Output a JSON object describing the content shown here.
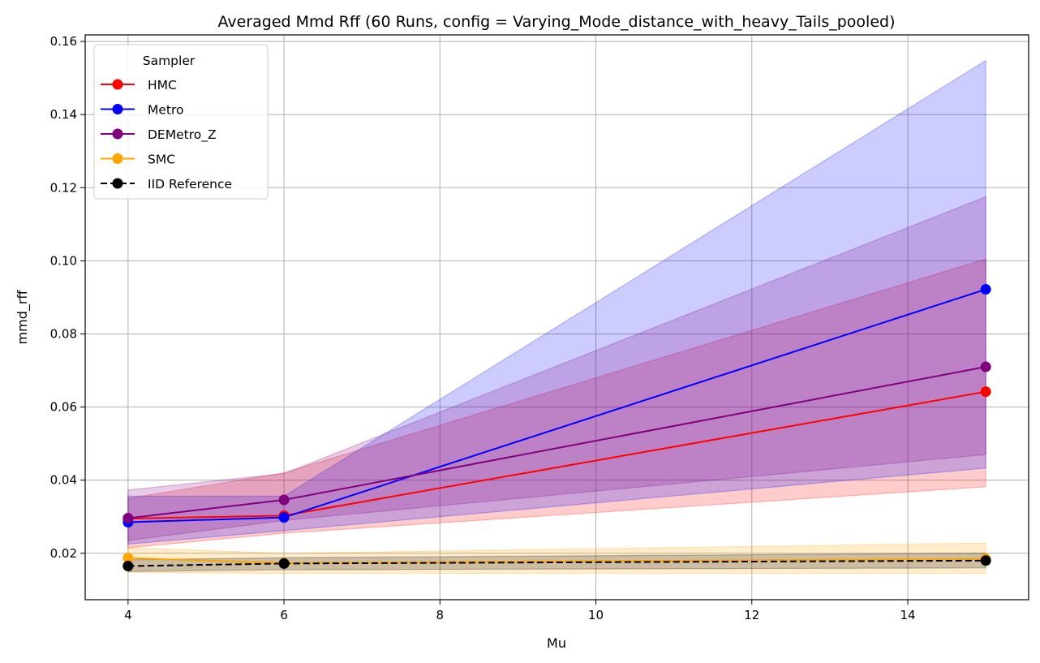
{
  "chart_data": {
    "type": "line",
    "title": "Averaged Mmd Rff (60 Runs, config = Varying_Mode_distance_with_heavy_Tails_pooled)",
    "xlabel": "Mu",
    "ylabel": "mmd_rff",
    "x": [
      4,
      6,
      15
    ],
    "xlim": [
      3.45,
      15.55
    ],
    "ylim": [
      0.0073,
      0.1618
    ],
    "xticks": [
      4,
      6,
      8,
      10,
      12,
      14
    ],
    "yticks": [
      0.02,
      0.04,
      0.06,
      0.08,
      0.1,
      0.12,
      0.14,
      0.16
    ],
    "ytick_labels": [
      "0.02",
      "0.04",
      "0.06",
      "0.08",
      "0.10",
      "0.12",
      "0.14",
      "0.16"
    ],
    "grid": true,
    "legend": {
      "title": "Sampler",
      "position": "top-left"
    },
    "series": [
      {
        "name": "HMC",
        "color": "#ff0000",
        "linestyle": "solid",
        "marker": "circle",
        "values": [
          0.0295,
          0.0303,
          0.0642
        ],
        "band_lower": [
          0.0215,
          0.0255,
          0.0382
        ],
        "band_upper": [
          0.035,
          0.042,
          0.1005
        ]
      },
      {
        "name": "Metro",
        "color": "#0000ff",
        "linestyle": "solid",
        "marker": "circle",
        "values": [
          0.0285,
          0.0298,
          0.0922
        ],
        "band_lower": [
          0.0225,
          0.0262,
          0.0433
        ],
        "band_upper": [
          0.0356,
          0.0356,
          0.1548
        ]
      },
      {
        "name": "DEMetro_Z",
        "color": "#800080",
        "linestyle": "solid",
        "marker": "circle",
        "values": [
          0.0296,
          0.0346,
          0.071
        ],
        "band_lower": [
          0.0235,
          0.029,
          0.047
        ],
        "band_upper": [
          0.0373,
          0.0418,
          0.1175
        ]
      },
      {
        "name": "SMC",
        "color": "#ffa500",
        "linestyle": "solid",
        "marker": "circle",
        "values": [
          0.0187,
          0.0173,
          0.0185
        ],
        "band_lower": [
          0.0148,
          0.0145,
          0.0145
        ],
        "band_upper": [
          0.0215,
          0.02,
          0.0228
        ]
      },
      {
        "name": "IID Reference",
        "color": "#000000",
        "linestyle": "dashed",
        "marker": "circle",
        "values": [
          0.0165,
          0.0172,
          0.018
        ],
        "band_lower": [
          0.015,
          0.0155,
          0.016
        ],
        "band_upper": [
          0.0182,
          0.0188,
          0.02
        ]
      }
    ]
  }
}
